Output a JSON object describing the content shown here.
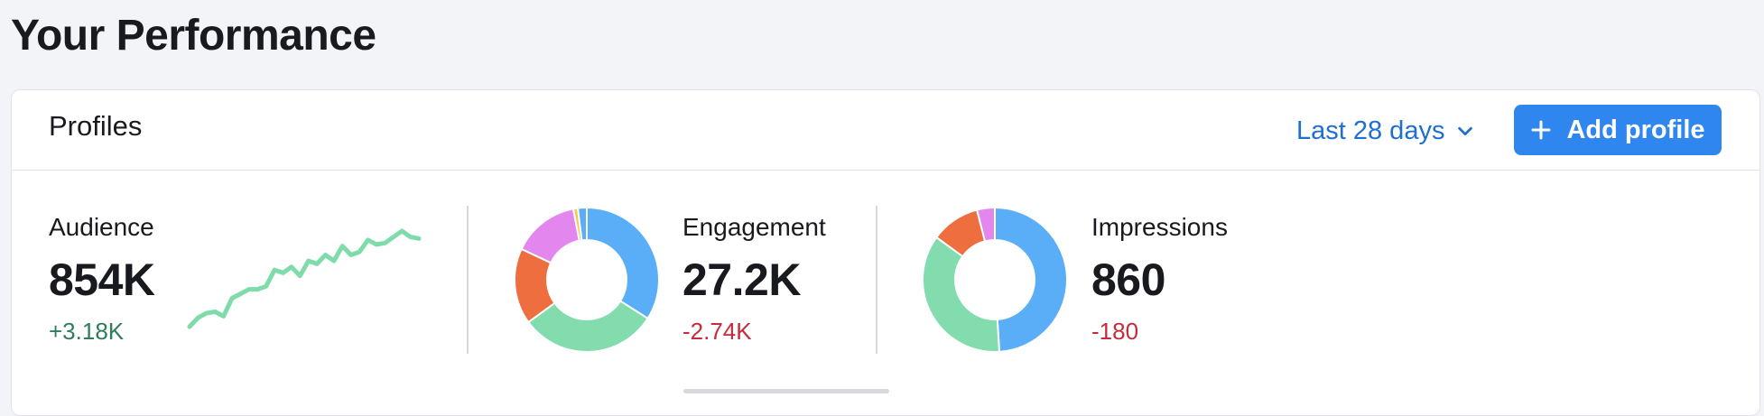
{
  "page_title": "Your Performance",
  "card": {
    "title": "Profiles",
    "period_label": "Last 28 days",
    "add_button_label": "Add profile",
    "icons": {
      "period": "chevron-down-icon",
      "add": "plus-icon"
    }
  },
  "colors": {
    "accent": "#2f86ef",
    "link": "#1f6fd1",
    "positive": "#2e7d5b",
    "negative": "#c62b3b",
    "sparkline": "#7fdcaa",
    "donut_blue": "#5aaef7",
    "donut_green": "#82dcae",
    "donut_orange": "#ee6e3f",
    "donut_violet": "#e387ee",
    "donut_yellow": "#f7c948"
  },
  "metrics": {
    "audience": {
      "label": "Audience",
      "value": "854K",
      "delta": "+3.18K",
      "trend": "positive",
      "sparkline": [
        2,
        8,
        11,
        12,
        9,
        21,
        24,
        27,
        27,
        29,
        40,
        38,
        42,
        36,
        46,
        44,
        50,
        46,
        56,
        50,
        52,
        60,
        57,
        58,
        62,
        66,
        62,
        61
      ]
    },
    "engagement": {
      "label": "Engagement",
      "value": "27.2K",
      "delta": "-2.74K",
      "trend": "negative",
      "distribution": [
        {
          "color": "blue",
          "share": 0.34
        },
        {
          "color": "green",
          "share": 0.31
        },
        {
          "color": "orange",
          "share": 0.17
        },
        {
          "color": "violet",
          "share": 0.15
        },
        {
          "color": "yellow",
          "share": 0.01
        },
        {
          "color": "blue",
          "share": 0.02
        }
      ]
    },
    "impressions": {
      "label": "Impressions",
      "value": "860",
      "delta": "-180",
      "trend": "negative",
      "distribution": [
        {
          "color": "blue",
          "share": 0.49
        },
        {
          "color": "green",
          "share": 0.36
        },
        {
          "color": "orange",
          "share": 0.11
        },
        {
          "color": "violet",
          "share": 0.04
        }
      ]
    }
  }
}
